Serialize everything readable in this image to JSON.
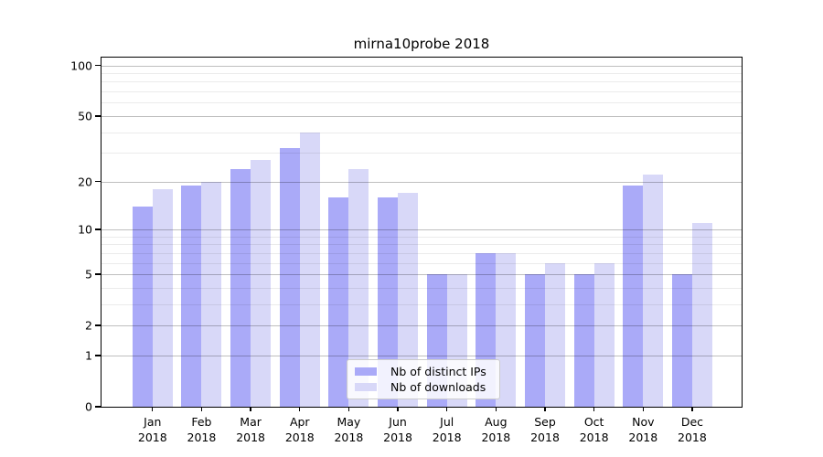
{
  "title": "mirna10probe 2018",
  "colors": {
    "ips": "#aaaaf8",
    "downloads": "#d8d8f8",
    "axis": "#000000",
    "grid_major": "rgba(0,0,0,0.25)",
    "grid_minor": "rgba(0,0,0,0.08)",
    "legend_border": "#cccccc"
  },
  "legend": {
    "items": [
      {
        "label": "Nb of distinct IPs",
        "color_key": "ips"
      },
      {
        "label": "Nb of downloads",
        "color_key": "downloads"
      }
    ]
  },
  "chart_data": {
    "type": "bar",
    "title": "mirna10probe 2018",
    "scale": "log1p",
    "xlabel": "",
    "ylabel": "",
    "ylim": [
      0,
      112
    ],
    "grid": true,
    "legend_position": "lower center-right inside plot",
    "categories": [
      "Jan 2018",
      "Feb 2018",
      "Mar 2018",
      "Apr 2018",
      "May 2018",
      "Jun 2018",
      "Jul 2018",
      "Aug 2018",
      "Sep 2018",
      "Oct 2018",
      "Nov 2018",
      "Dec 2018"
    ],
    "months": [
      "Jan",
      "Feb",
      "Mar",
      "Apr",
      "May",
      "Jun",
      "Jul",
      "Aug",
      "Sep",
      "Oct",
      "Nov",
      "Dec"
    ],
    "year_label": "2018",
    "series": [
      {
        "name": "Nb of distinct IPs",
        "values": [
          14,
          19,
          24,
          32,
          16,
          16,
          5,
          7,
          5,
          5,
          19,
          5
        ]
      },
      {
        "name": "Nb of downloads",
        "values": [
          18,
          20,
          27,
          40,
          24,
          17,
          5,
          7,
          6,
          6,
          22,
          11
        ]
      }
    ],
    "y_ticks": [
      0,
      1,
      2,
      5,
      10,
      20,
      50,
      100
    ],
    "y_minor_gridlines": [
      3,
      4,
      6,
      7,
      8,
      9,
      30,
      40,
      60,
      70,
      80,
      90
    ]
  }
}
